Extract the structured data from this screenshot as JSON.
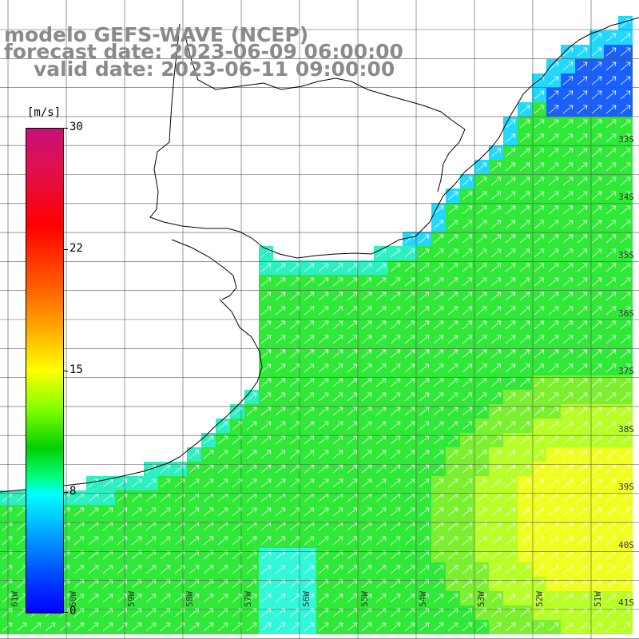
{
  "title": {
    "line1": "modelo GEFS-WAVE (NCEP)",
    "line2": "forecast date: 2023-06-09 06:00:00",
    "line3": "valid date: 2023-06-11 09:00:00"
  },
  "colorbar": {
    "unit": "[m/s]",
    "ticks": [
      "30",
      "22",
      "15",
      "8",
      "0"
    ]
  },
  "axes": {
    "lat_labels": [
      "33S",
      "34S",
      "35S",
      "36S",
      "37S",
      "38S",
      "39S",
      "40S",
      "41S"
    ],
    "lon_labels": [
      "61W",
      "60W",
      "59W",
      "58W",
      "57W",
      "56W",
      "55W",
      "54W",
      "53W",
      "52W",
      "51W"
    ]
  },
  "colors": {
    "land": "#ffffff",
    "grid": "#555555",
    "coast": "#000000",
    "arrow": "#ffffff"
  }
}
